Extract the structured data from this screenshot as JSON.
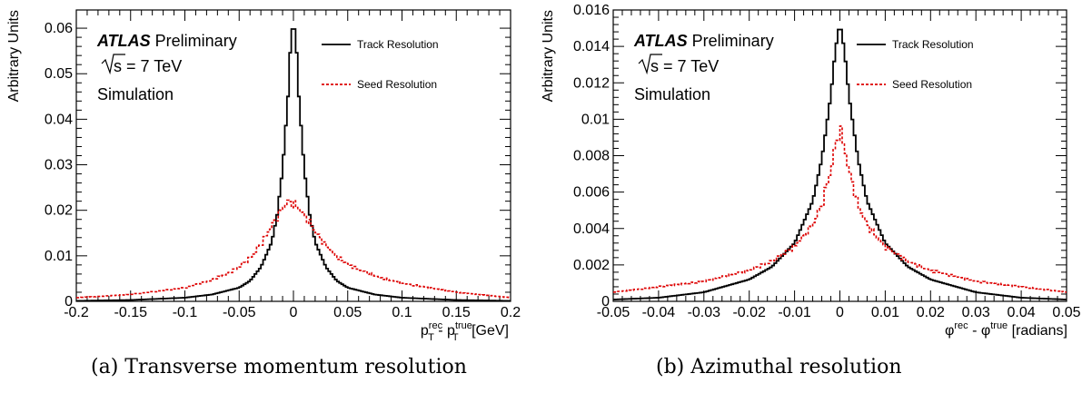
{
  "captions": {
    "a": "(a) Transverse momentum resolution",
    "b": "(b) Azimuthal resolution"
  },
  "chart_data": [
    {
      "type": "line",
      "ylabel": "Arbitrary Units",
      "xlabel_main": "p",
      "xlabel_sup1": "rec",
      "xlabel_sub1": "T",
      "xlabel_mid": " - p",
      "xlabel_sup2": "true",
      "xlabel_sub2": "T",
      "xlabel_unit": " [GeV]",
      "xlim": [
        -0.2,
        0.2
      ],
      "ylim": [
        0,
        0.064
      ],
      "xticks": [
        -0.2,
        -0.15,
        -0.1,
        -0.05,
        0,
        0.05,
        0.1,
        0.15,
        0.2
      ],
      "xtick_labels": [
        "-0.2",
        "-0.15",
        "-0.1",
        "-0.05",
        "0",
        "0.05",
        "0.1",
        "0.15",
        "0.2"
      ],
      "yticks": [
        0,
        0.01,
        0.02,
        0.03,
        0.04,
        0.05,
        0.06
      ],
      "ytick_labels": [
        "0",
        "0.01",
        "0.02",
        "0.03",
        "0.04",
        "0.05",
        "0.06"
      ],
      "annotations": {
        "atlas": "ATLAS",
        "prelim": "Preliminary",
        "sqrt": "s",
        "energy": " = 7 TeV",
        "sim": "Simulation"
      },
      "legend_position": "top-right",
      "series": [
        {
          "name": "Track Resolution",
          "color": "#000000",
          "style": "solid",
          "x": [
            -0.2,
            -0.15,
            -0.1,
            -0.075,
            -0.05,
            -0.04,
            -0.03,
            -0.02,
            -0.015,
            -0.01,
            -0.005,
            -0.0025,
            0,
            0.0025,
            0.005,
            0.01,
            0.015,
            0.02,
            0.03,
            0.04,
            0.05,
            0.075,
            0.1,
            0.15,
            0.2
          ],
          "y": [
            0.0001,
            0.0003,
            0.0008,
            0.0015,
            0.003,
            0.0045,
            0.0075,
            0.013,
            0.019,
            0.029,
            0.045,
            0.057,
            0.0617,
            0.057,
            0.045,
            0.029,
            0.019,
            0.013,
            0.0075,
            0.0045,
            0.003,
            0.0015,
            0.0008,
            0.0003,
            0.0001
          ]
        },
        {
          "name": "Seed Resolution",
          "color": "#dd0000",
          "style": "dashed",
          "x": [
            -0.2,
            -0.15,
            -0.1,
            -0.08,
            -0.06,
            -0.05,
            -0.04,
            -0.03,
            -0.02,
            -0.01,
            -0.005,
            0,
            0.01,
            0.02,
            0.03,
            0.04,
            0.05,
            0.06,
            0.08,
            0.1,
            0.15,
            0.2
          ],
          "y": [
            0.0008,
            0.0015,
            0.003,
            0.0043,
            0.0062,
            0.0075,
            0.0095,
            0.0125,
            0.0165,
            0.0205,
            0.0218,
            0.0215,
            0.019,
            0.0155,
            0.0122,
            0.0098,
            0.0082,
            0.007,
            0.0052,
            0.004,
            0.002,
            0.0008
          ]
        }
      ]
    },
    {
      "type": "line",
      "ylabel": "Arbitrary Units",
      "xlabel_main": "φ",
      "xlabel_sup1": "rec",
      "xlabel_mid": " - φ",
      "xlabel_sup2": "true",
      "xlabel_unit": " [radians]",
      "xlim": [
        -0.05,
        0.05
      ],
      "ylim": [
        0,
        0.016
      ],
      "xticks": [
        -0.05,
        -0.04,
        -0.03,
        -0.02,
        -0.01,
        0,
        0.01,
        0.02,
        0.03,
        0.04,
        0.05
      ],
      "xtick_labels": [
        "-0.05",
        "-0.04",
        "-0.03",
        "-0.02",
        "-0.01",
        "0",
        "0.01",
        "0.02",
        "0.03",
        "0.04",
        "0.05"
      ],
      "yticks": [
        0,
        0.002,
        0.004,
        0.006,
        0.008,
        0.01,
        0.012,
        0.014,
        0.016
      ],
      "ytick_labels": [
        "0",
        "0.002",
        "0.004",
        "0.006",
        "0.008",
        "0.01",
        "0.012",
        "0.014",
        "0.016"
      ],
      "annotations": {
        "atlas": "ATLAS",
        "prelim": "Preliminary",
        "sqrt": "s",
        "energy": " = 7 TeV",
        "sim": "Simulation"
      },
      "legend_position": "top-right",
      "series": [
        {
          "name": "Track Resolution",
          "color": "#000000",
          "style": "solid",
          "x": [
            -0.05,
            -0.04,
            -0.03,
            -0.02,
            -0.015,
            -0.01,
            -0.006,
            -0.004,
            -0.002,
            -0.001,
            0,
            0.001,
            0.002,
            0.004,
            0.006,
            0.01,
            0.015,
            0.02,
            0.03,
            0.04,
            0.05
          ],
          "y": [
            0.0001,
            0.0002,
            0.0005,
            0.0012,
            0.0019,
            0.0032,
            0.0055,
            0.0078,
            0.0113,
            0.0138,
            0.0153,
            0.0138,
            0.0113,
            0.0078,
            0.0055,
            0.0032,
            0.0019,
            0.0012,
            0.0005,
            0.0002,
            0.0001
          ]
        },
        {
          "name": "Seed Resolution",
          "color": "#dd0000",
          "style": "dashed",
          "x": [
            -0.05,
            -0.04,
            -0.03,
            -0.02,
            -0.015,
            -0.01,
            -0.006,
            -0.004,
            -0.002,
            -0.001,
            0,
            0.001,
            0.002,
            0.004,
            0.006,
            0.01,
            0.015,
            0.02,
            0.03,
            0.04,
            0.05
          ],
          "y": [
            0.0005,
            0.0008,
            0.0011,
            0.0017,
            0.0022,
            0.003,
            0.0042,
            0.0053,
            0.0072,
            0.0085,
            0.0095,
            0.0085,
            0.0072,
            0.0053,
            0.0042,
            0.003,
            0.0022,
            0.0017,
            0.0011,
            0.0008,
            0.0005
          ]
        }
      ]
    }
  ]
}
